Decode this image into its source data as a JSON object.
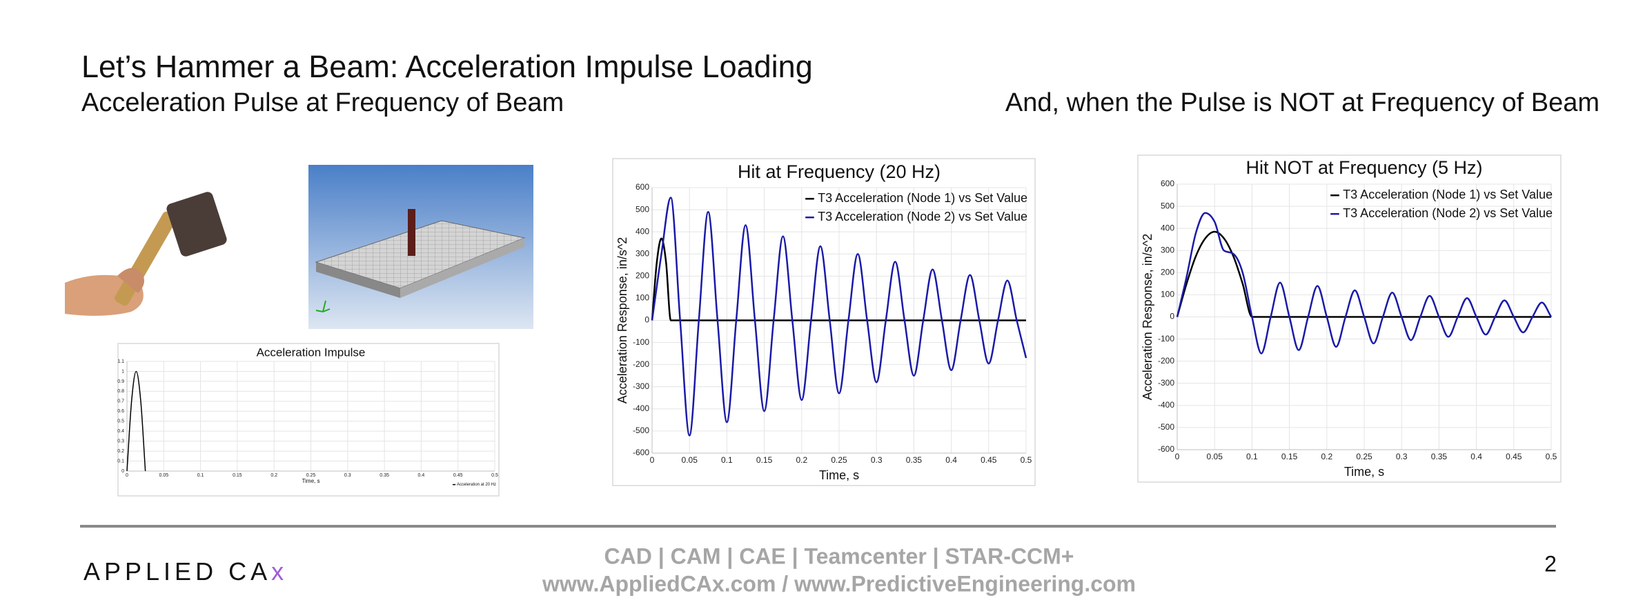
{
  "title": "Let’s Hammer a Beam: Acceleration Impulse Loading",
  "subtitle_left": "Acceleration Pulse at Frequency of Beam",
  "subtitle_right": "And, when the Pulse is NOT at Frequency of Beam",
  "footer": {
    "line1": "CAD | CAM | CAE | Teamcenter | STAR-CCM+",
    "line2": "www.AppliedCAx.com / www.PredictiveEngineering.com",
    "page": 2,
    "logo": {
      "text": "APPLIED CA",
      "accent": "x"
    }
  },
  "chart_data": [
    {
      "type": "line",
      "title": "Acceleration Impulse",
      "x_label": "Time, s",
      "xlim": [
        0,
        0.5
      ],
      "xticks": [
        0,
        0.05,
        0.1,
        0.15,
        0.2,
        0.25,
        0.3,
        0.35,
        0.4,
        0.45,
        0.5
      ],
      "ylim": [
        0,
        1.1
      ],
      "yticks": [
        0,
        0.1,
        0.2,
        0.3,
        0.4,
        0.5,
        0.6,
        0.7,
        0.8,
        0.9,
        1,
        1.1
      ],
      "grid": true,
      "legend": "lower right",
      "series": [
        {
          "name": "Acceleration at 20 Hz",
          "color": "#000000",
          "x": [
            0,
            0.00625,
            0.0125,
            0.01875,
            0.025
          ],
          "values": [
            0,
            0.7,
            1,
            0.7,
            0
          ]
        }
      ]
    },
    {
      "type": "line",
      "title": "Hit at Frequency (20 Hz)",
      "x_label": "Time, s",
      "y_label": "Acceleration Response, in/s^2",
      "xlim": [
        0,
        0.5
      ],
      "xticks": [
        0,
        0.05,
        0.1,
        0.15,
        0.2,
        0.25,
        0.3,
        0.35,
        0.4,
        0.45,
        0.5
      ],
      "ylim": [
        -600,
        600
      ],
      "yticks": [
        -600,
        -500,
        -400,
        -300,
        -200,
        -100,
        0,
        100,
        200,
        300,
        400,
        500,
        600
      ],
      "grid": true,
      "legend": "upper right",
      "series": [
        {
          "name": "T3 Acceleration (Node 1) vs Set Value",
          "color": "#000000",
          "x": [
            0,
            0.00625,
            0.0125,
            0.01875,
            0.025,
            0.5
          ],
          "values": [
            0,
            260,
            370,
            260,
            0,
            0
          ]
        },
        {
          "name": "T3 Acceleration (Node 2) vs Set Value",
          "color": "#1a1aa8",
          "x": [
            0,
            0.0125,
            0.025,
            0.0375,
            0.05,
            0.0625,
            0.075,
            0.0875,
            0.1,
            0.1125,
            0.125,
            0.1375,
            0.15,
            0.1625,
            0.175,
            0.1875,
            0.2,
            0.2125,
            0.225,
            0.2375,
            0.25,
            0.2625,
            0.275,
            0.2875,
            0.3,
            0.3125,
            0.325,
            0.3375,
            0.35,
            0.3625,
            0.375,
            0.3875,
            0.4,
            0.4125,
            0.425,
            0.4375,
            0.45,
            0.4625,
            0.475,
            0.4875,
            0.5
          ],
          "values": [
            0,
            300,
            555,
            0,
            -520,
            0,
            490,
            0,
            -460,
            0,
            430,
            0,
            -410,
            0,
            380,
            0,
            -360,
            0,
            335,
            0,
            -330,
            0,
            300,
            0,
            -280,
            0,
            265,
            0,
            -250,
            0,
            230,
            0,
            -225,
            0,
            205,
            0,
            -195,
            0,
            180,
            0,
            -170
          ]
        }
      ]
    },
    {
      "type": "line",
      "title": "Hit NOT at Frequency (5 Hz)",
      "x_label": "Time, s",
      "y_label": "Acceleration Response, in/s^2",
      "xlim": [
        0,
        0.5
      ],
      "xticks": [
        0,
        0.05,
        0.1,
        0.15,
        0.2,
        0.25,
        0.3,
        0.35,
        0.4,
        0.45,
        0.5
      ],
      "ylim": [
        -600,
        600
      ],
      "yticks": [
        -600,
        -500,
        -400,
        -300,
        -200,
        -100,
        0,
        100,
        200,
        300,
        400,
        500,
        600
      ],
      "grid": true,
      "legend": "upper right",
      "series": [
        {
          "name": "T3 Acceleration (Node 1) vs Set Value",
          "color": "#000000",
          "x": [
            0,
            0.0125,
            0.025,
            0.0375,
            0.05,
            0.0625,
            0.075,
            0.0875,
            0.1,
            0.5
          ],
          "values": [
            0,
            150,
            275,
            355,
            385,
            355,
            275,
            150,
            0,
            0
          ]
        },
        {
          "name": "T3 Acceleration (Node 2) vs Set Value",
          "color": "#1a1aa8",
          "x": [
            0,
            0.0125,
            0.025,
            0.0375,
            0.05,
            0.0625,
            0.075,
            0.0875,
            0.1,
            0.1125,
            0.125,
            0.1375,
            0.15,
            0.1625,
            0.175,
            0.1875,
            0.2,
            0.2125,
            0.225,
            0.2375,
            0.25,
            0.2625,
            0.275,
            0.2875,
            0.3,
            0.3125,
            0.325,
            0.3375,
            0.35,
            0.3625,
            0.375,
            0.3875,
            0.4,
            0.4125,
            0.425,
            0.4375,
            0.45,
            0.4625,
            0.475,
            0.4875,
            0.5
          ],
          "values": [
            0,
            180,
            380,
            470,
            430,
            300,
            285,
            200,
            0,
            -165,
            0,
            155,
            0,
            -150,
            0,
            140,
            0,
            -135,
            0,
            120,
            0,
            -120,
            0,
            110,
            0,
            -105,
            0,
            95,
            0,
            -90,
            0,
            85,
            0,
            -80,
            0,
            75,
            0,
            -70,
            0,
            65,
            0
          ]
        }
      ]
    }
  ]
}
